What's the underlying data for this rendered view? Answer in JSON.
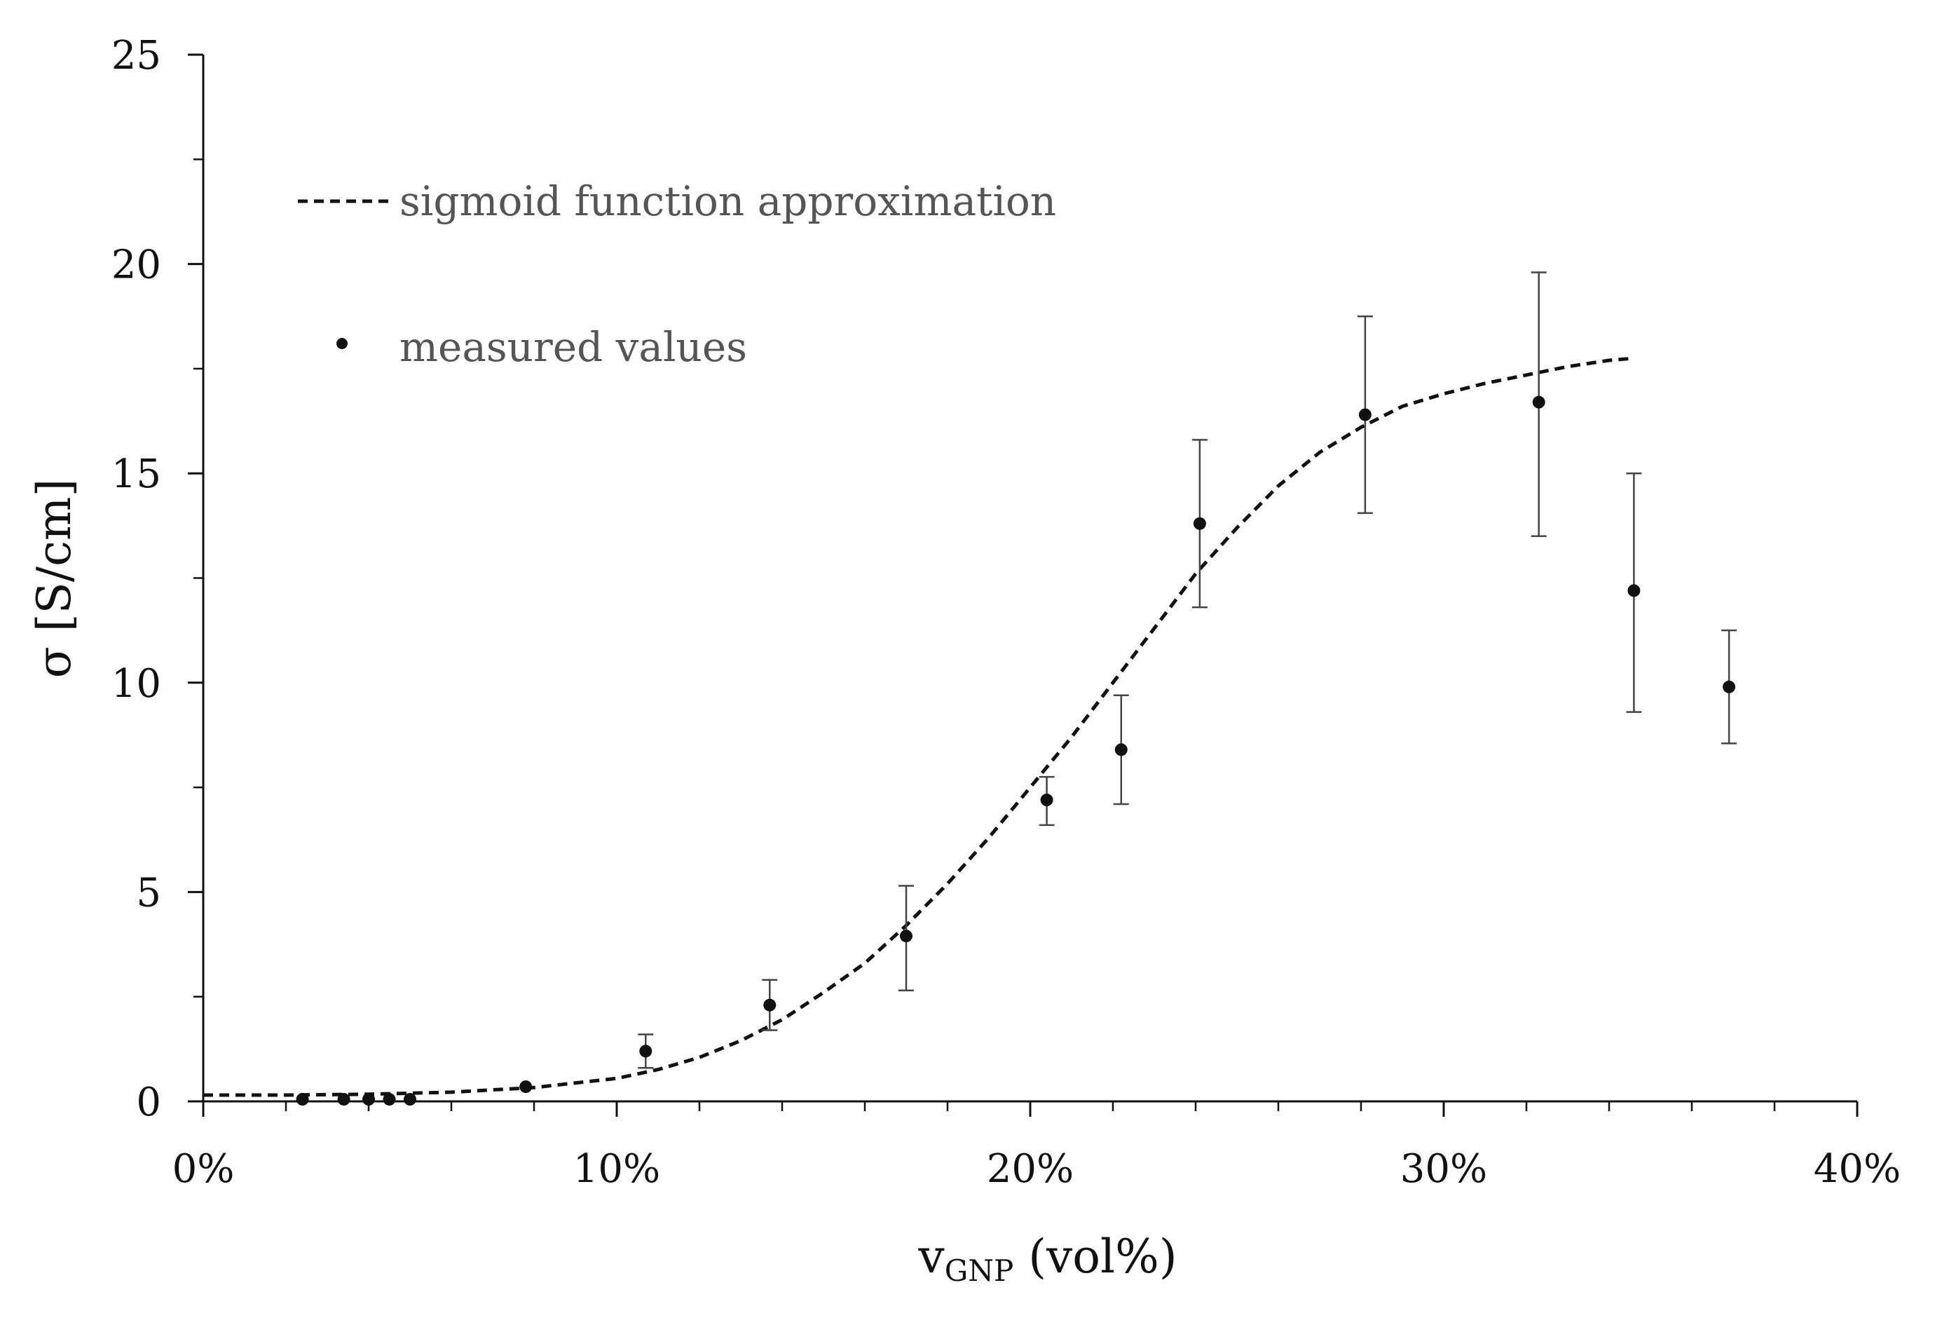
{
  "chart_data": {
    "type": "scatter",
    "title": "",
    "xlabel": "v",
    "xlabel_subscript": "GNP",
    "xlabel_suffix": " (vol%)",
    "ylabel": "σ [S/cm]",
    "xlim": [
      0,
      40
    ],
    "ylim": [
      0,
      25
    ],
    "x_ticks": [
      0,
      10,
      20,
      30,
      40
    ],
    "x_tick_labels": [
      "0%",
      "10%",
      "20%",
      "30%",
      "40%"
    ],
    "x_minor_step": 2,
    "y_ticks": [
      0,
      5,
      10,
      15,
      20,
      25
    ],
    "y_tick_labels": [
      "0",
      "5",
      "10",
      "15",
      "20",
      "25"
    ],
    "y_minor_step": 2.5,
    "grid": false,
    "legend_position": "top-left",
    "series": [
      {
        "name": "sigmoid function approximation",
        "style": "dashed-line",
        "color": "#111111",
        "x": [
          0,
          2,
          4,
          6,
          8,
          10,
          11,
          12,
          13,
          14,
          15,
          16,
          17,
          18,
          19,
          20,
          21,
          22,
          23,
          24,
          25,
          26,
          27,
          28,
          29,
          30,
          31,
          32,
          33,
          34,
          34.6
        ],
        "y": [
          0.15,
          0.15,
          0.17,
          0.22,
          0.33,
          0.55,
          0.76,
          1.05,
          1.45,
          1.95,
          2.6,
          3.3,
          4.2,
          5.2,
          6.3,
          7.5,
          8.7,
          10.0,
          11.3,
          12.6,
          13.7,
          14.7,
          15.5,
          16.1,
          16.6,
          16.9,
          17.15,
          17.35,
          17.55,
          17.7,
          17.75
        ]
      },
      {
        "name": "measured values",
        "style": "markers-with-error-bars",
        "color": "#111111",
        "x": [
          2.4,
          3.4,
          4.0,
          4.5,
          5.0,
          7.8,
          10.7,
          13.7,
          17.0,
          20.4,
          22.2,
          24.1,
          28.1,
          32.3,
          34.6,
          36.9
        ],
        "y": [
          0.05,
          0.05,
          0.05,
          0.05,
          0.05,
          0.35,
          1.2,
          2.3,
          3.95,
          7.2,
          8.4,
          13.8,
          16.4,
          16.7,
          12.2,
          9.9
        ],
        "y_err_low": [
          0,
          0,
          0,
          0,
          0,
          0,
          0.4,
          0.6,
          1.3,
          0.6,
          1.3,
          2.0,
          2.35,
          3.2,
          2.9,
          1.35
        ],
        "y_err_high": [
          0,
          0,
          0,
          0,
          0,
          0,
          0.4,
          0.6,
          1.2,
          0.55,
          1.3,
          2.0,
          2.35,
          3.1,
          2.8,
          1.35
        ]
      }
    ]
  }
}
